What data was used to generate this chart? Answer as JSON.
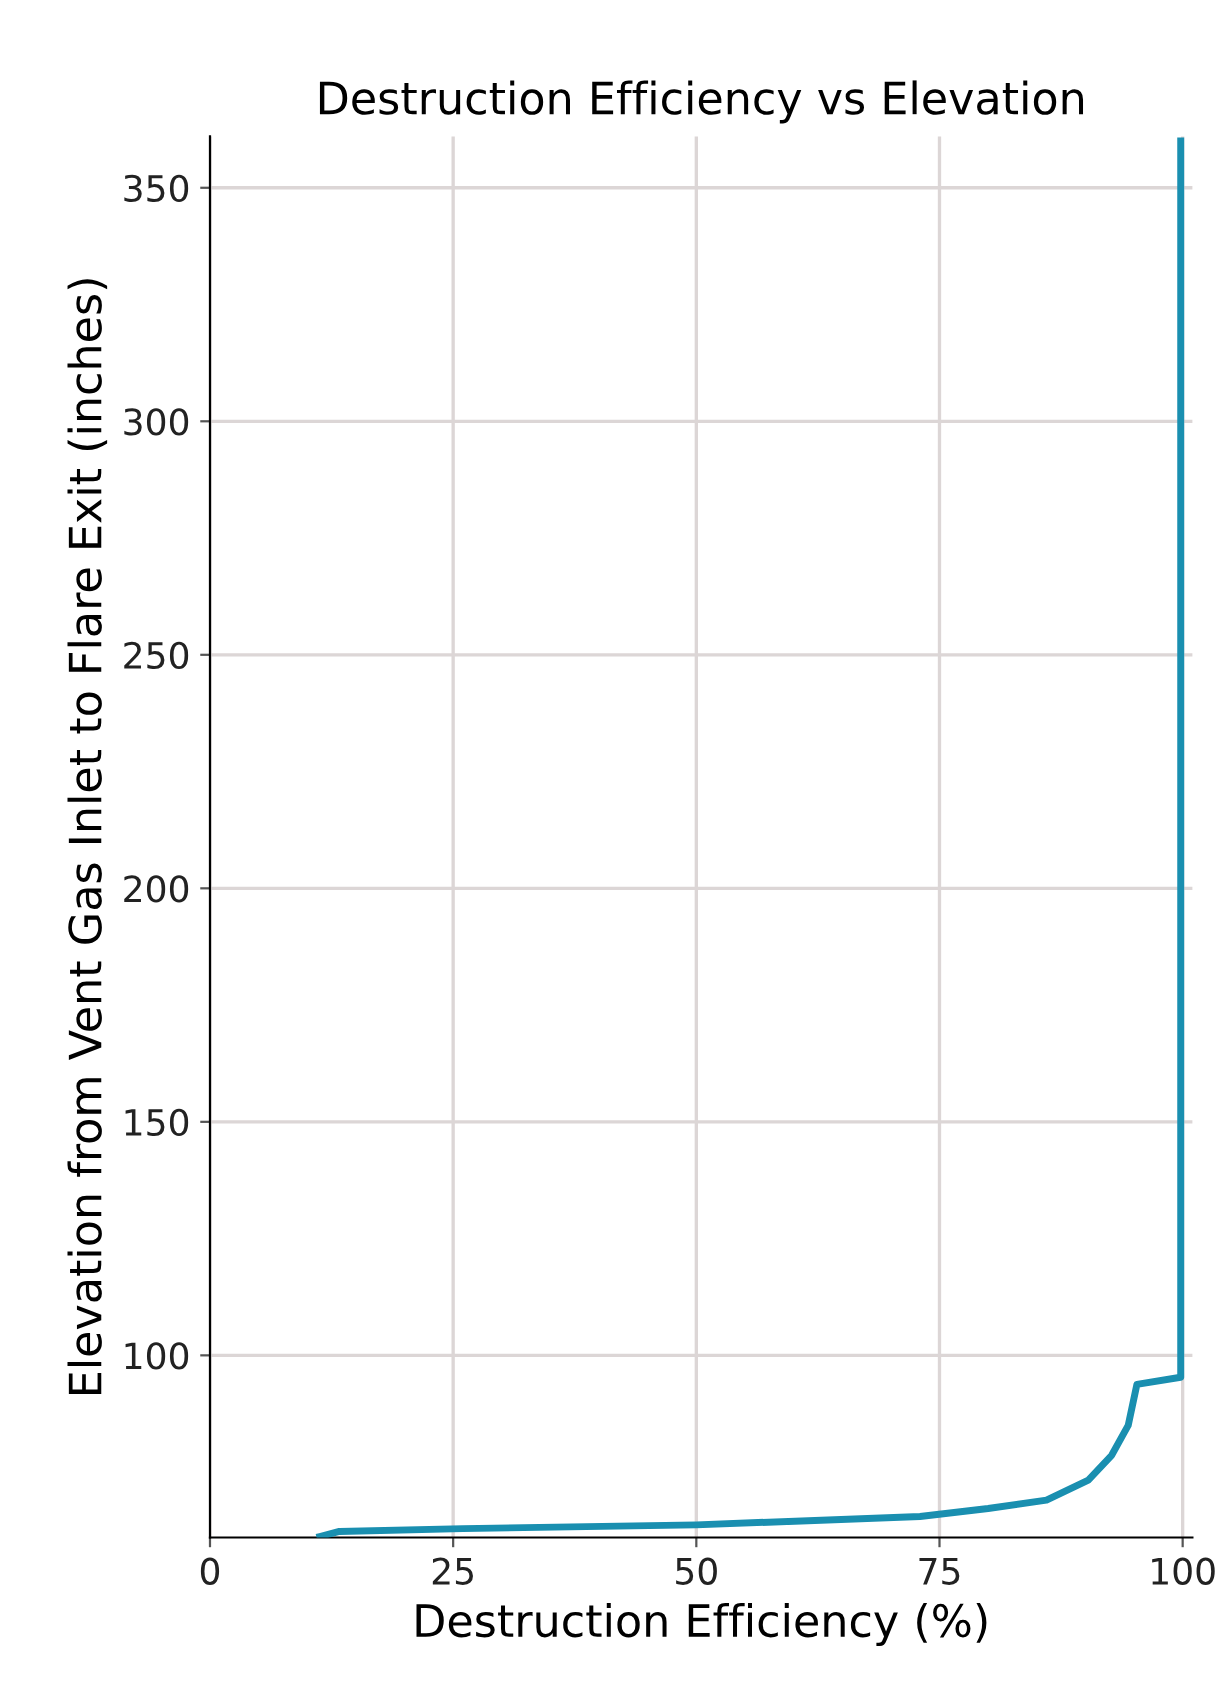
{
  "chart_data": {
    "type": "line",
    "title": "Destruction Efficiency vs Elevation",
    "xlabel": "Destruction Efficiency (%)",
    "ylabel": "Elevation from Vent Gas Inlet to Flare Exit (inches)",
    "series": [
      {
        "color": "#1a8fb0",
        "x": [
          11.3,
          13.3,
          26,
          50,
          73,
          80,
          86,
          90.3,
          92.7,
          94.4,
          95.3,
          99.8,
          99.8
        ],
        "values": [
          61.2,
          62.3,
          62.9,
          63.7,
          65.5,
          67.2,
          69,
          73.3,
          78.6,
          85,
          93.8,
          95.3,
          360
        ]
      }
    ],
    "xlim": [
      0,
      101
    ],
    "ylim": [
      61,
      361
    ],
    "xticks": [
      0,
      25,
      50,
      75,
      100
    ],
    "yticks": [
      100,
      150,
      200,
      250,
      300,
      350
    ],
    "grid": true,
    "legend": false,
    "marker": "none",
    "line_style": "solid"
  }
}
